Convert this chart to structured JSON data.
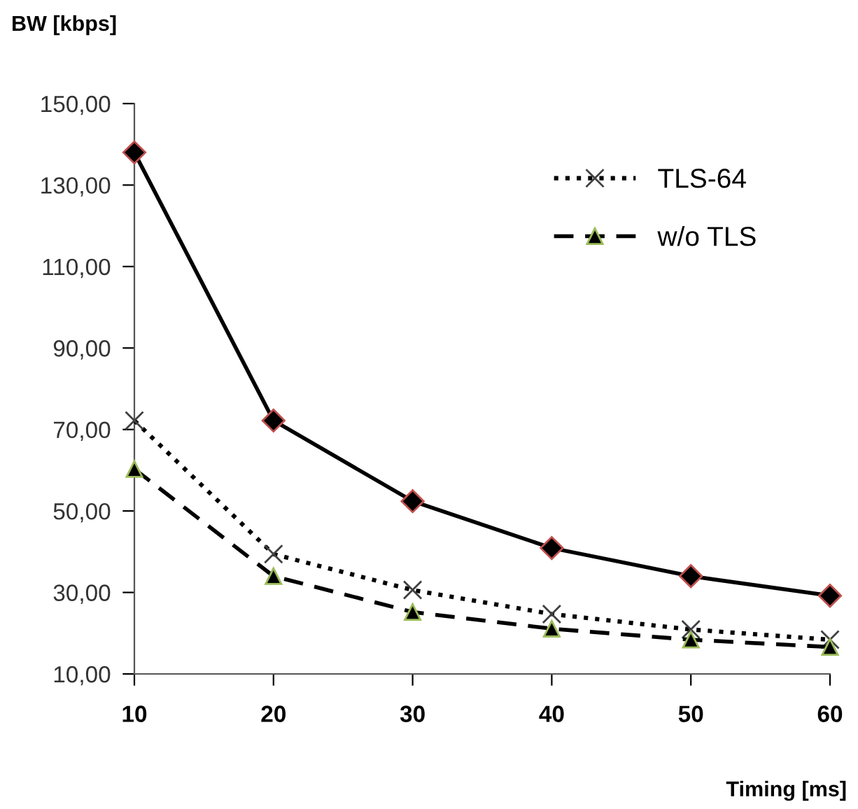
{
  "chart_data": {
    "type": "line",
    "xlabel": "Timing [ms]",
    "ylabel": "BW [kbps]",
    "x": [
      10,
      20,
      30,
      40,
      50,
      60
    ],
    "series": [
      {
        "name": "TLS-64",
        "color": "#000000",
        "values": [
          72.2,
          39.4,
          30.6,
          24.7,
          20.9,
          18.4
        ],
        "marker": "cross",
        "line_style": "dotted"
      },
      {
        "color": "#000000",
        "values": [
          138.0,
          72.2,
          52.4,
          40.9,
          34.0,
          29.2
        ],
        "marker": "diamond",
        "line_style": "solid"
      },
      {
        "name": "w/o TLS",
        "color": "#000000",
        "values": [
          60.3,
          34.0,
          25.2,
          21.1,
          18.4,
          16.6
        ],
        "marker": "triangle",
        "line_style": "dashed"
      }
    ],
    "xlim": [
      10,
      60
    ],
    "xticks": [
      10,
      20,
      30,
      40,
      50,
      60
    ],
    "ylim": [
      10,
      150
    ],
    "yticks": [
      {
        "value": 10,
        "label": "10,00"
      },
      {
        "value": 30,
        "label": "30,00"
      },
      {
        "value": 50,
        "label": "50,00"
      },
      {
        "value": 70,
        "label": "70,00"
      },
      {
        "value": 90,
        "label": "90,00"
      },
      {
        "value": 110,
        "label": "110,00"
      },
      {
        "value": 130,
        "label": "130,00"
      },
      {
        "value": 150,
        "label": "150,00"
      }
    ],
    "grid": false,
    "legend": "top right"
  }
}
